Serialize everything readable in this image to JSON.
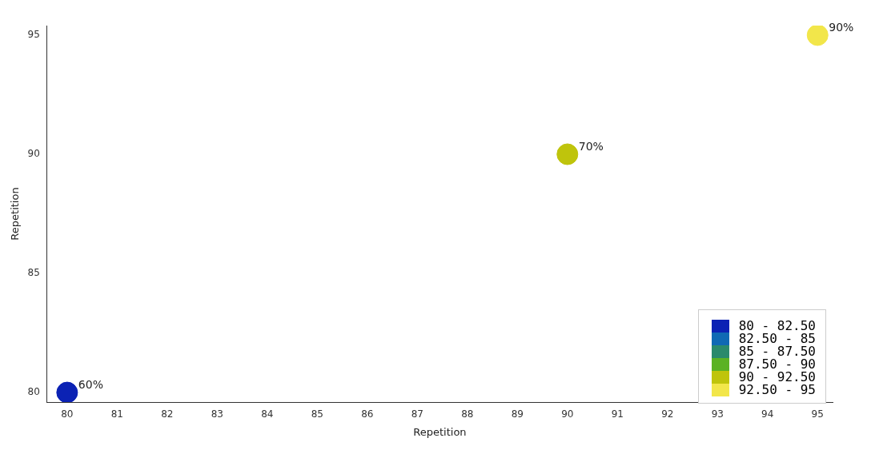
{
  "chart_data": {
    "type": "scatter",
    "xlabel": "Repetition",
    "ylabel": "Repetition",
    "x": [
      80,
      90,
      95
    ],
    "series": [
      {
        "name": "80 - 82.50",
        "color": "#0b22b4",
        "values": [
          80,
          null,
          null
        ]
      },
      {
        "name": "82.50 - 85",
        "color": "#0f69b4",
        "values": [
          null,
          null,
          null
        ]
      },
      {
        "name": "85 - 87.50",
        "color": "#2a8a6c",
        "values": [
          null,
          null,
          null
        ]
      },
      {
        "name": "87.50 - 90",
        "color": "#5bb224",
        "values": [
          null,
          null,
          null
        ]
      },
      {
        "name": "90 - 92.50",
        "color": "#bfc40c",
        "values": [
          null,
          90,
          null
        ]
      },
      {
        "name": "92.50 - 95",
        "color": "#f2e64a",
        "values": [
          null,
          null,
          95
        ]
      }
    ],
    "annotations": [
      {
        "text": "60%",
        "x": 80,
        "y": 80
      },
      {
        "text": "70%",
        "x": 90,
        "y": 90
      },
      {
        "text": "90%",
        "x": 95,
        "y": 95
      }
    ],
    "xlim": [
      79.6,
      95.3
    ],
    "xticks": [
      80,
      81,
      82,
      83,
      84,
      85,
      86,
      87,
      88,
      89,
      90,
      91,
      92,
      93,
      94,
      95
    ],
    "ylim": [
      79.6,
      95.4
    ],
    "yticks": [
      80,
      85,
      90,
      95
    ],
    "grid": false,
    "marker": "circle",
    "legend": "bottom right"
  }
}
